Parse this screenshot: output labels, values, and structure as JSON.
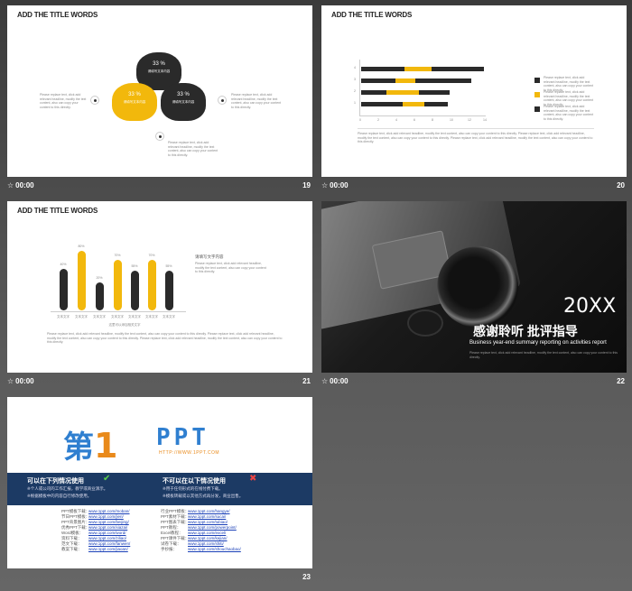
{
  "slides": [
    {
      "id": "19",
      "title": "ADD THE TITLE WORDS",
      "time": "00:00",
      "number": "19",
      "blobs": [
        {
          "pct": "33 %",
          "label": "请填写文本内容",
          "color": "#2a2a2a"
        },
        {
          "pct": "33 %",
          "label": "请填写文本内容",
          "color": "#f2b80c"
        },
        {
          "pct": "33 %",
          "label": "请填写文本内容",
          "color": "#2a2a2a"
        }
      ],
      "left_text": "Please replace text, click add relevant headline, modify the text content, also can copy your content to this directly.",
      "right_text": "Please replace text, click add relevant headline, modify the text content, also can copy your content to this directly.",
      "bottom_text": "Please replace text, click add relevant headline, modify the text content, also can copy your content to this directly."
    },
    {
      "id": "20",
      "title": "ADD THE TITLE WORDS",
      "time": "00:00",
      "number": "20",
      "y_ticks": [
        "4",
        "3",
        "2",
        "1"
      ],
      "x_ticks": [
        "0",
        "2",
        "4",
        "6",
        "8",
        "10",
        "12",
        "14"
      ],
      "legend_text": "Please replace text, click add relevant headline, modify the text content, also can copy your content to this directly.",
      "paragraph": "Please replace text, click add relevant headline, modify the text content, also can copy your content to this directly. Please replace text, click add relevant headline, modify the text content, also can copy your content to this directly. Please replace text, click add relevant headline, modify the text content, also can copy your content to this directly."
    },
    {
      "id": "21",
      "title": "ADD THE TITLE WORDS",
      "time": "00:00",
      "number": "21",
      "bar_pcts": [
        "40%",
        "80%",
        "20%",
        "70%",
        "55%",
        "70%",
        "55%"
      ],
      "bar_label": "文本文字",
      "axis_caption": "这里可以添加相关文字",
      "side_heading": "请填写文字内容",
      "side_text": "Please replace text, click add relevant headline, modify the text content, also can copy your content to this directly.",
      "paragraph": "Please replace text, click add relevant headline, modify the text content, also can copy your content to this directly. Please replace text, click add relevant headline, modify the text content, also can copy your content to this directly. Please replace text, click add relevant headline, modify the text content, also can copy your content to this directly."
    },
    {
      "id": "22",
      "time": "00:00",
      "number": "22",
      "year": "20XX",
      "headline": "感谢聆听  批评指导",
      "subline": "Business year-end summary reporting on activities report",
      "small": "Please replace text, click add relevant headline, modify the text content, also can copy your content to this directly."
    },
    {
      "id": "23",
      "number": "23",
      "logo_main": "第",
      "logo_one": "1",
      "logo_ppt": "PPT",
      "logo_url": "HTTP://WWW.1PPT.COM",
      "can_heading": "可以在下列情况使用",
      "cannot_heading": "不可以在以下情况使用",
      "can_items": [
        "※个人或公司的工作汇报，教学或商业演示。",
        "※根据模板中的内容自行修改使用。"
      ],
      "cannot_items": [
        "※用于任何形式的在线付费下载。",
        "※模板转载或以其他方式再分发，商业出售。"
      ],
      "links_left": [
        {
          "k": "PPT模板下载：",
          "v": "www.1ppt.com/moban/"
        },
        {
          "k": "节日PPT模板：",
          "v": "www.1ppt.com/jieri/"
        },
        {
          "k": "PPT背景图片：",
          "v": "www.1ppt.com/beijing/"
        },
        {
          "k": "优秀PPT下载：",
          "v": "www.1ppt.com/xiazai/"
        },
        {
          "k": "Word模板：",
          "v": "www.1ppt.com/word/"
        },
        {
          "k": "资料下载：",
          "v": "www.1ppt.com/ziliao/"
        },
        {
          "k": "范文下载：",
          "v": "www.1ppt.com/fanwen/"
        },
        {
          "k": "教案下载：",
          "v": "www.1ppt.com/jiaoan/"
        }
      ],
      "links_right": [
        {
          "k": "行业PPT模板：",
          "v": "www.1ppt.com/hangye/"
        },
        {
          "k": "PPT素材下载：",
          "v": "www.1ppt.com/sucai/"
        },
        {
          "k": "PPT图表下载：",
          "v": "www.1ppt.com/tubiao/"
        },
        {
          "k": "PPT教程：",
          "v": "www.1ppt.com/powerpoint/"
        },
        {
          "k": "Excel教程：",
          "v": "www.1ppt.com/excel/"
        },
        {
          "k": "PPT课件下载：",
          "v": "www.1ppt.com/kejian/"
        },
        {
          "k": "试卷下载：",
          "v": "www.1ppt.com/shiti/"
        },
        {
          "k": "手抄报：",
          "v": "www.1ppt.com/shouchaobao/"
        }
      ]
    }
  ]
}
